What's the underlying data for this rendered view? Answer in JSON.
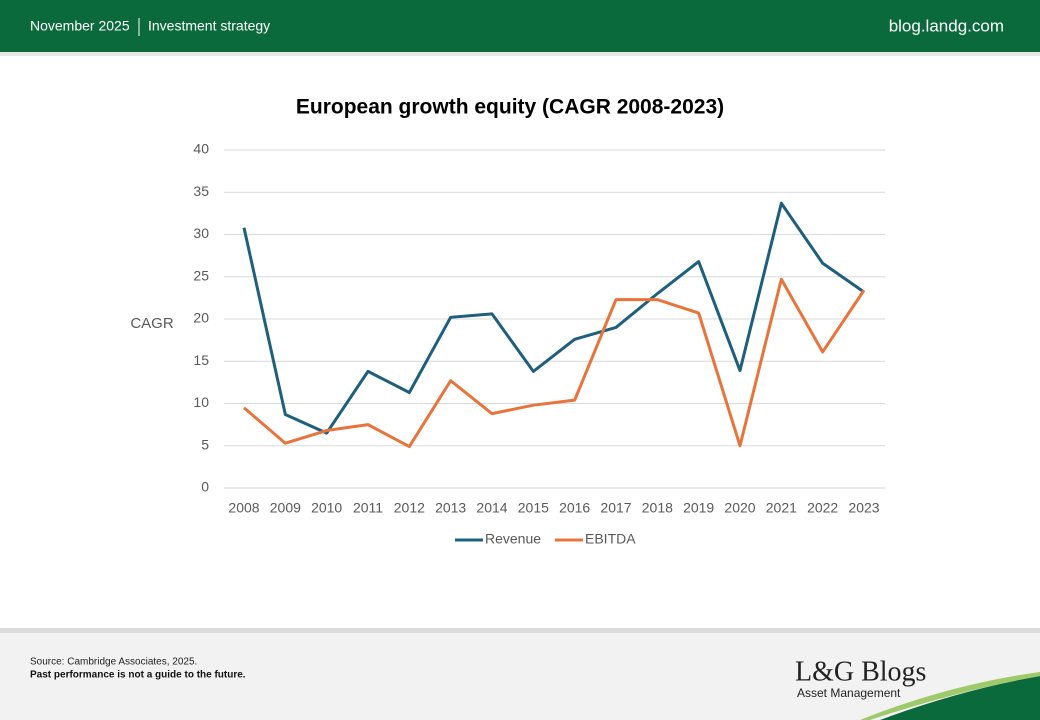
{
  "header": {
    "date": "November 2025",
    "section": "Investment strategy",
    "site": "blog.landg.com"
  },
  "footer": {
    "source": "Source: Cambridge Associates, 2025.",
    "disclaimer": "Past performance is not a guide to the future.",
    "logo": "L&G Blogs",
    "logo_subtitle": "Asset Management"
  },
  "chart_data": {
    "type": "line",
    "title": "European growth equity (CAGR 2008-2023)",
    "y_label": "CAGR",
    "categories": [
      "2008",
      "2009",
      "2010",
      "2011",
      "2012",
      "2013",
      "2014",
      "2015",
      "2016",
      "2017",
      "2018",
      "2019",
      "2020",
      "2021",
      "2022",
      "2023"
    ],
    "series": [
      {
        "name": "Revenue",
        "color": "#1d5f7d",
        "values": [
          30.8,
          8.7,
          6.5,
          13.8,
          11.3,
          20.2,
          20.6,
          13.8,
          17.6,
          19.0,
          23.0,
          26.8,
          13.9,
          33.7,
          26.6,
          23.2
        ]
      },
      {
        "name": "EBITDA",
        "color": "#e8743b",
        "values": [
          9.5,
          5.3,
          6.8,
          7.5,
          4.9,
          12.7,
          8.8,
          9.8,
          10.4,
          22.3,
          22.3,
          20.7,
          5.0,
          24.7,
          16.1,
          23.4
        ]
      }
    ],
    "ylim": [
      0,
      40
    ],
    "yticks": [
      0,
      5,
      10,
      15,
      20,
      25,
      30,
      35,
      40
    ],
    "grid": true,
    "legend": "bottom"
  }
}
